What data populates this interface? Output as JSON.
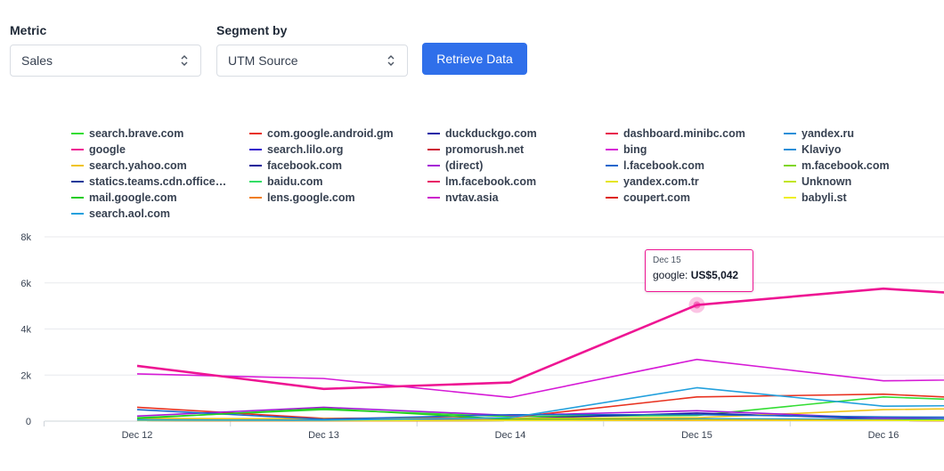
{
  "controls": {
    "metric_label": "Metric",
    "metric_value": "Sales",
    "segment_label": "Segment by",
    "segment_value": "UTM Source",
    "retrieve_label": "Retrieve Data",
    "accent": "#2f6fea"
  },
  "tooltip": {
    "date": "Dec 15",
    "series": "google",
    "value": "US$5,042",
    "color": "#ee1593"
  },
  "chart_data": {
    "type": "line",
    "x": [
      "Dec 12",
      "Dec 13",
      "Dec 14",
      "Dec 15",
      "Dec 16",
      ""
    ],
    "ylim": [
      0,
      8000
    ],
    "yticks": [
      0,
      2000,
      4000,
      6000,
      8000
    ],
    "ytick_labels": [
      "0",
      "2k",
      "4k",
      "6k",
      "8k"
    ],
    "grid": true,
    "legend_position": "top",
    "series": [
      {
        "name": "search.brave.com",
        "color": "#33dd33",
        "values": [
          150,
          500,
          200,
          250,
          1050,
          750
        ]
      },
      {
        "name": "com.google.android.gm",
        "color": "#e8311f",
        "values": [
          600,
          120,
          150,
          1050,
          1170,
          800
        ]
      },
      {
        "name": "duckduckgo.com",
        "color": "#1a1aa6",
        "values": [
          100,
          80,
          100,
          350,
          100,
          80
        ]
      },
      {
        "name": "dashboard.minibc.com",
        "color": "#e8194c",
        "values": [
          50,
          40,
          50,
          60,
          50,
          40
        ]
      },
      {
        "name": "yandex.ru",
        "color": "#2a8fd8",
        "values": [
          80,
          60,
          80,
          100,
          80,
          60
        ]
      },
      {
        "name": "google",
        "color": "#ee1593",
        "values": [
          2400,
          1400,
          1680,
          5042,
          5750,
          5250
        ]
      },
      {
        "name": "search.lilo.org",
        "color": "#3311cc",
        "values": [
          40,
          30,
          40,
          50,
          40,
          30
        ]
      },
      {
        "name": "promorush.net",
        "color": "#cc1133",
        "values": [
          40,
          30,
          40,
          50,
          40,
          30
        ]
      },
      {
        "name": "bing",
        "color": "#d61ad6",
        "values": [
          2050,
          1850,
          1030,
          2680,
          1750,
          1850
        ]
      },
      {
        "name": "Klaviyo",
        "color": "#2a8fd8",
        "values": [
          30,
          30,
          30,
          40,
          30,
          30
        ]
      },
      {
        "name": "search.yahoo.com",
        "color": "#f0c419",
        "values": [
          120,
          100,
          120,
          150,
          500,
          600
        ]
      },
      {
        "name": "facebook.com",
        "color": "#12129a",
        "values": [
          30,
          20,
          30,
          40,
          30,
          20
        ]
      },
      {
        "name": "(direct)",
        "color": "#a51ad6",
        "values": [
          220,
          600,
          250,
          450,
          130,
          250
        ]
      },
      {
        "name": "l.facebook.com",
        "color": "#1a66cc",
        "values": [
          500,
          80,
          280,
          280,
          180,
          150
        ]
      },
      {
        "name": "m.facebook.com",
        "color": "#7fd61a",
        "values": [
          30,
          20,
          30,
          40,
          30,
          20
        ]
      },
      {
        "name": "statics.teams.cdn.office.net",
        "color": "#1a3a99",
        "values": [
          30,
          20,
          30,
          40,
          30,
          20
        ]
      },
      {
        "name": "baidu.com",
        "color": "#33dd66",
        "values": [
          30,
          20,
          30,
          40,
          30,
          20
        ]
      },
      {
        "name": "lm.facebook.com",
        "color": "#e81a66",
        "values": [
          30,
          20,
          30,
          40,
          30,
          20
        ]
      },
      {
        "name": "yandex.com.tr",
        "color": "#e5e51a",
        "values": [
          30,
          20,
          30,
          40,
          30,
          20
        ]
      },
      {
        "name": "Unknown",
        "color": "#c2e51a",
        "values": [
          30,
          20,
          30,
          40,
          30,
          20
        ]
      },
      {
        "name": "mail.google.com",
        "color": "#22cc22",
        "values": [
          120,
          550,
          80,
          60,
          50,
          40
        ]
      },
      {
        "name": "lens.google.com",
        "color": "#f07d1a",
        "values": [
          30,
          20,
          30,
          40,
          30,
          20
        ]
      },
      {
        "name": "nvtav.asia",
        "color": "#cc1acc",
        "values": [
          30,
          20,
          30,
          40,
          30,
          20
        ]
      },
      {
        "name": "coupert.com",
        "color": "#dd2211",
        "values": [
          30,
          20,
          30,
          40,
          30,
          20
        ]
      },
      {
        "name": "babyli.st",
        "color": "#eeee22",
        "values": [
          30,
          20,
          30,
          40,
          30,
          20
        ]
      },
      {
        "name": "search.aol.com",
        "color": "#22a0dd",
        "values": [
          50,
          40,
          150,
          1450,
          650,
          700
        ]
      }
    ]
  }
}
